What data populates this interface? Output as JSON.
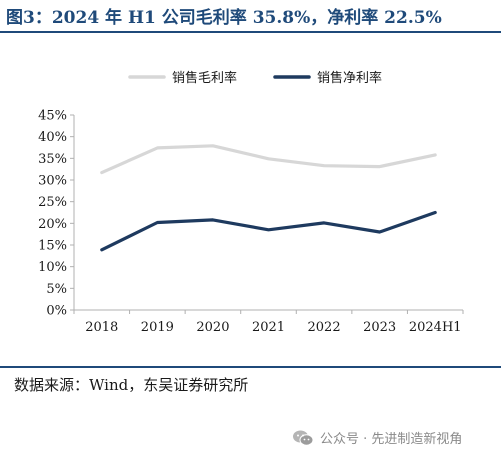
{
  "title": "图3：2024 年 H1 公司毛利率 35.8%，净利率 22.5%",
  "source": "数据来源：Wind，东吴证券研究所",
  "watermark": "公众号 · 先进制造新视角",
  "watermark_icon": "wechat-icon",
  "colors": {
    "title": "#1f4a7a",
    "rule": "#1f4a7a",
    "gross_margin": "#d7d7d7",
    "net_margin": "#1e3a5f",
    "axis": "#b0b0b0",
    "text": "#1a1a1a"
  },
  "chart_data": {
    "type": "line",
    "categories": [
      "2018",
      "2019",
      "2020",
      "2021",
      "2022",
      "2023",
      "2024H1"
    ],
    "series": [
      {
        "name": "销售毛利率",
        "values": [
          31.7,
          37.4,
          37.9,
          34.9,
          33.3,
          33.1,
          35.8
        ]
      },
      {
        "name": "销售净利率",
        "values": [
          13.9,
          20.2,
          20.8,
          18.5,
          20.1,
          18.0,
          22.5
        ]
      }
    ],
    "ylim": [
      0,
      45
    ],
    "yticks": [
      "0%",
      "5%",
      "10%",
      "15%",
      "20%",
      "25%",
      "30%",
      "35%",
      "40%",
      "45%"
    ],
    "legend_position": "top",
    "grid": false
  }
}
